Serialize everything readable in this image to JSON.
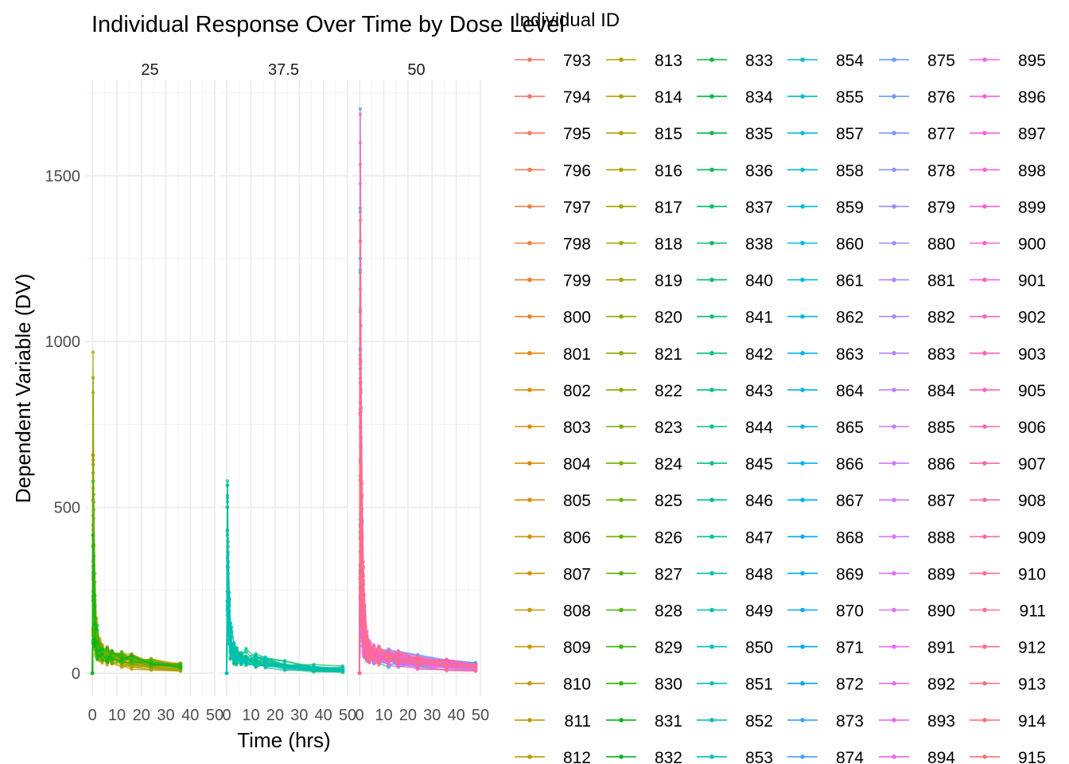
{
  "chart_data": {
    "type": "line",
    "title": "Individual Response Over Time by Dose Level",
    "xlabel": "Time (hrs)",
    "ylabel": "Dependent Variable (DV)",
    "xlim": [
      -3,
      50
    ],
    "ylim": [
      -70,
      1790
    ],
    "x_ticks": [
      0,
      10,
      20,
      30,
      40,
      50
    ],
    "x_tick_labels": [
      "0",
      "10",
      "20",
      "30",
      "40",
      "50"
    ],
    "y_ticks": [
      0,
      500,
      1000,
      1500
    ],
    "y_tick_labels": [
      "0",
      "500",
      "1000",
      "1500"
    ],
    "grid": true,
    "legend_position": "right",
    "legend_title": "Individual ID",
    "facets": [
      "25",
      "37.5",
      "50"
    ],
    "sample_times": [
      0,
      0.25,
      0.5,
      1,
      1.5,
      2,
      3,
      4,
      6,
      8,
      12,
      16,
      24,
      36,
      48
    ],
    "panels": [
      {
        "facet": "25",
        "id_start": 793,
        "n_individuals": 40,
        "peak_range": [
          90,
          980
        ],
        "max_time": 36,
        "tail_value_range": [
          2,
          10
        ]
      },
      {
        "facet": "37.5",
        "id_start": 833,
        "n_individuals": 20,
        "peak_range": [
          150,
          670
        ],
        "max_time": 48,
        "tail_value_range": [
          1,
          6
        ]
      },
      {
        "facet": "50",
        "id_start": 853,
        "n_individuals": 60,
        "peak_range": [
          200,
          1730
        ],
        "max_time": 48,
        "tail_value_range": [
          2,
          12
        ]
      }
    ],
    "legend_ids": [
      "793",
      "794",
      "795",
      "796",
      "797",
      "798",
      "799",
      "800",
      "801",
      "802",
      "803",
      "804",
      "805",
      "806",
      "807",
      "808",
      "809",
      "810",
      "811",
      "812",
      "813",
      "814",
      "815",
      "816",
      "817",
      "818",
      "819",
      "820",
      "821",
      "822",
      "823",
      "824",
      "825",
      "826",
      "827",
      "828",
      "829",
      "830",
      "831",
      "832",
      "833",
      "834",
      "835",
      "836",
      "837",
      "838",
      "840",
      "841",
      "842",
      "843",
      "844",
      "845",
      "846",
      "847",
      "848",
      "849",
      "850",
      "851",
      "852",
      "853",
      "854",
      "855",
      "857",
      "858",
      "859",
      "860",
      "861",
      "862",
      "863",
      "864",
      "865",
      "866",
      "867",
      "868",
      "869",
      "870",
      "871",
      "872",
      "873",
      "874",
      "875",
      "876",
      "877",
      "878",
      "879",
      "880",
      "881",
      "882",
      "883",
      "884",
      "885",
      "886",
      "887",
      "888",
      "889",
      "890",
      "891",
      "892",
      "893",
      "894",
      "895",
      "896",
      "897",
      "898",
      "899",
      "900",
      "901",
      "902",
      "903",
      "905",
      "906",
      "907",
      "908",
      "909",
      "910",
      "911",
      "912",
      "913",
      "914",
      "915"
    ],
    "legend_columns": 6,
    "legend_rows": 20,
    "color_scheme": "ggplot2 hue palette across individual IDs",
    "hue_start": 15,
    "hue_end": 375
  }
}
